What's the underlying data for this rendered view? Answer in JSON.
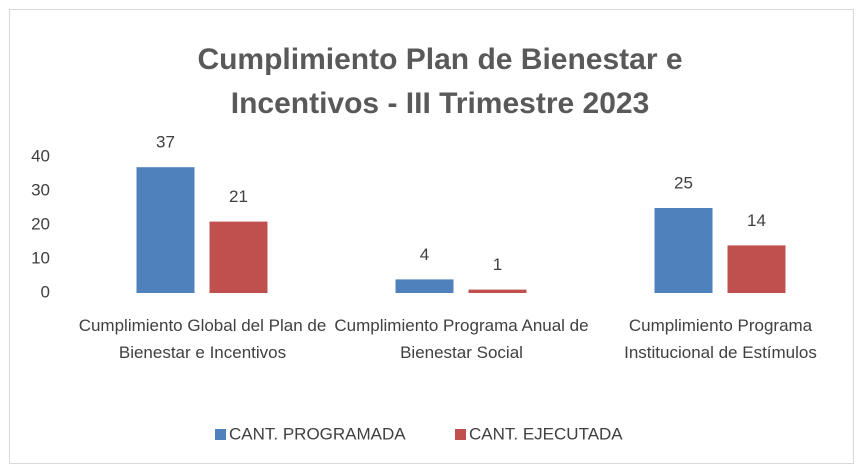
{
  "chart_data": {
    "type": "bar",
    "title": "Cumplimiento Plan de Bienestar e Incentivos - III Trimestre 2023",
    "categories": [
      "Cumplimiento Global del Plan de Bienestar e Incentivos",
      "Cumplimiento Programa Anual de Bienestar Social",
      "Cumplimiento Programa Institucional de Estímulos"
    ],
    "series": [
      {
        "name": "CANT. PROGRAMADA",
        "color": "#4f81bd",
        "values": [
          37,
          4,
          25
        ]
      },
      {
        "name": "CANT. EJECUTADA",
        "color": "#c0504d",
        "values": [
          21,
          1,
          14
        ]
      }
    ],
    "ylim": [
      0,
      40
    ],
    "yticks": [
      0,
      10,
      20,
      30,
      40
    ],
    "grid": false,
    "legend": "bottom"
  }
}
